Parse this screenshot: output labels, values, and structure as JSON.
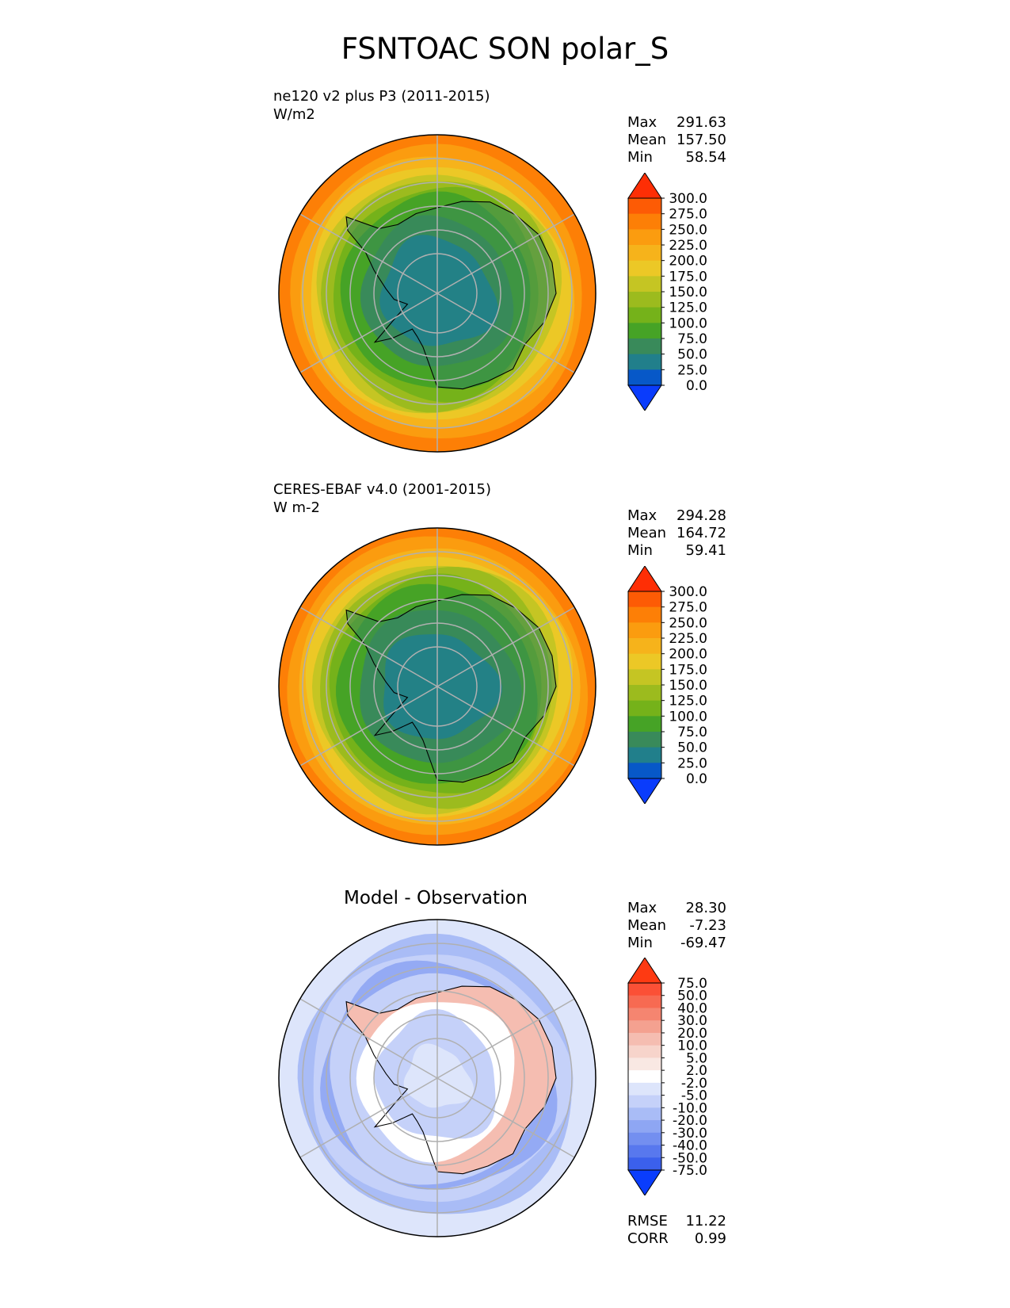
{
  "title": "FSNTOAC SON polar_S",
  "chart_data": [
    {
      "type": "polar-contour-map",
      "label_line1": "ne120 v2 plus P3 (2011-2015)",
      "label_line2": "W/m2",
      "stats": [
        {
          "label": "Max",
          "value": "291.63"
        },
        {
          "label": "Mean",
          "value": "157.50"
        },
        {
          "label": "Min",
          "value": "58.54"
        }
      ],
      "colorbar": {
        "ticks": [
          "300.0",
          "275.0",
          "250.0",
          "225.0",
          "200.0",
          "175.0",
          "150.0",
          "125.0",
          "100.0",
          "75.0",
          "50.0",
          "25.0",
          "0.0"
        ],
        "colors": [
          "#fe2e05",
          "#fd5b05",
          "#fd7f06",
          "#fb9c0f",
          "#f6b31b",
          "#ecc826",
          "#c5c523",
          "#9cbb1e",
          "#75b21a",
          "#46a326",
          "#398a5a",
          "#217f8b",
          "#0758c8",
          "#0a3cfc"
        ],
        "extend": "both"
      }
    },
    {
      "type": "polar-contour-map",
      "label_line1": "CERES-EBAF v4.0 (2001-2015)",
      "label_line2": "W m-2",
      "stats": [
        {
          "label": "Max",
          "value": "294.28"
        },
        {
          "label": "Mean",
          "value": "164.72"
        },
        {
          "label": "Min",
          "value": "59.41"
        }
      ],
      "colorbar": {
        "ticks": [
          "300.0",
          "275.0",
          "250.0",
          "225.0",
          "200.0",
          "175.0",
          "150.0",
          "125.0",
          "100.0",
          "75.0",
          "50.0",
          "25.0",
          "0.0"
        ],
        "colors": [
          "#fe2e05",
          "#fd5b05",
          "#fd7f06",
          "#fb9c0f",
          "#f6b31b",
          "#ecc826",
          "#c5c523",
          "#9cbb1e",
          "#75b21a",
          "#46a326",
          "#398a5a",
          "#217f8b",
          "#0758c8",
          "#0a3cfc"
        ],
        "extend": "both"
      }
    },
    {
      "type": "polar-contour-map",
      "title": "Model - Observation",
      "stats": [
        {
          "label": "Max",
          "value": "28.30"
        },
        {
          "label": "Mean",
          "value": "-7.23"
        },
        {
          "label": "Min",
          "value": "-69.47"
        }
      ],
      "metrics": [
        {
          "label": "RMSE",
          "value": "11.22"
        },
        {
          "label": "CORR",
          "value": "0.99"
        }
      ],
      "colorbar": {
        "ticks": [
          "75.0",
          "50.0",
          "40.0",
          "30.0",
          "20.0",
          "10.0",
          "5.0",
          "2.0",
          "-2.0",
          "-5.0",
          "-10.0",
          "-20.0",
          "-30.0",
          "-40.0",
          "-50.0",
          "-75.0"
        ],
        "colors": [
          "#fe3a12",
          "#fb5036",
          "#f76a52",
          "#f58570",
          "#f4a190",
          "#f5bdb1",
          "#f7d4cb",
          "#f9e8e3",
          "#ffffff",
          "#dde5fb",
          "#c5d1f9",
          "#a9bcf6",
          "#8ea6f3",
          "#738ff0",
          "#5878ee",
          "#3b60ec",
          "#0a3dfc"
        ],
        "extend": "both"
      }
    }
  ]
}
